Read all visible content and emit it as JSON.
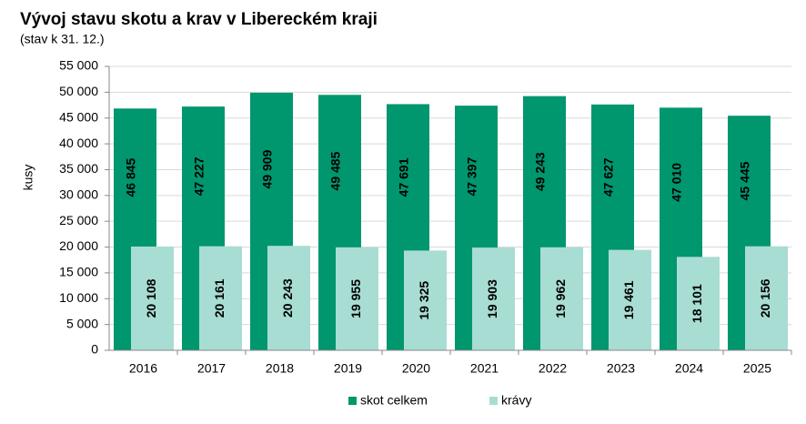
{
  "chart_data": {
    "type": "bar",
    "title": "Vývoj stavu skotu a krav v Libereckém kraji",
    "subtitle": "(stav k 31. 12.)",
    "y_label": "kusy",
    "categories": [
      "2016",
      "2017",
      "2018",
      "2019",
      "2020",
      "2021",
      "2022",
      "2023",
      "2024",
      "2025"
    ],
    "series": [
      {
        "name": "skot celkem",
        "color": "#00966e",
        "values": [
          46845,
          47227,
          49909,
          49485,
          47691,
          47397,
          49243,
          47627,
          47010,
          45445
        ],
        "value_labels": [
          "46 845",
          "47 227",
          "49 909",
          "49 485",
          "47 691",
          "47 397",
          "49 243",
          "47 627",
          "47 010",
          "45 445"
        ]
      },
      {
        "name": "krávy",
        "color": "#a8ddd3",
        "values": [
          20108,
          20161,
          20243,
          19955,
          19325,
          19903,
          19962,
          19461,
          18101,
          20156
        ],
        "value_labels": [
          "20 108",
          "20 161",
          "20 243",
          "19 955",
          "19 325",
          "19 903",
          "19 962",
          "19 461",
          "18 101",
          "20 156"
        ]
      }
    ],
    "ylim": [
      0,
      55000
    ],
    "yticks": [
      0,
      {
        "value": 5000,
        "label": "5 000"
      },
      {
        "value": 10000,
        "label": "10 000"
      },
      {
        "value": 15000,
        "label": "15 000"
      },
      {
        "value": 20000,
        "label": "20 000"
      },
      {
        "value": 25000,
        "label": "25 000"
      },
      {
        "value": 30000,
        "label": "30 000"
      },
      {
        "value": 35000,
        "label": "35 000"
      },
      {
        "value": 40000,
        "label": "40 000"
      },
      {
        "value": 45000,
        "label": "45 000"
      },
      {
        "value": 50000,
        "label": "50 000"
      },
      {
        "value": 55000,
        "label": "55 000"
      }
    ],
    "grid": true,
    "legend": "bottom"
  }
}
